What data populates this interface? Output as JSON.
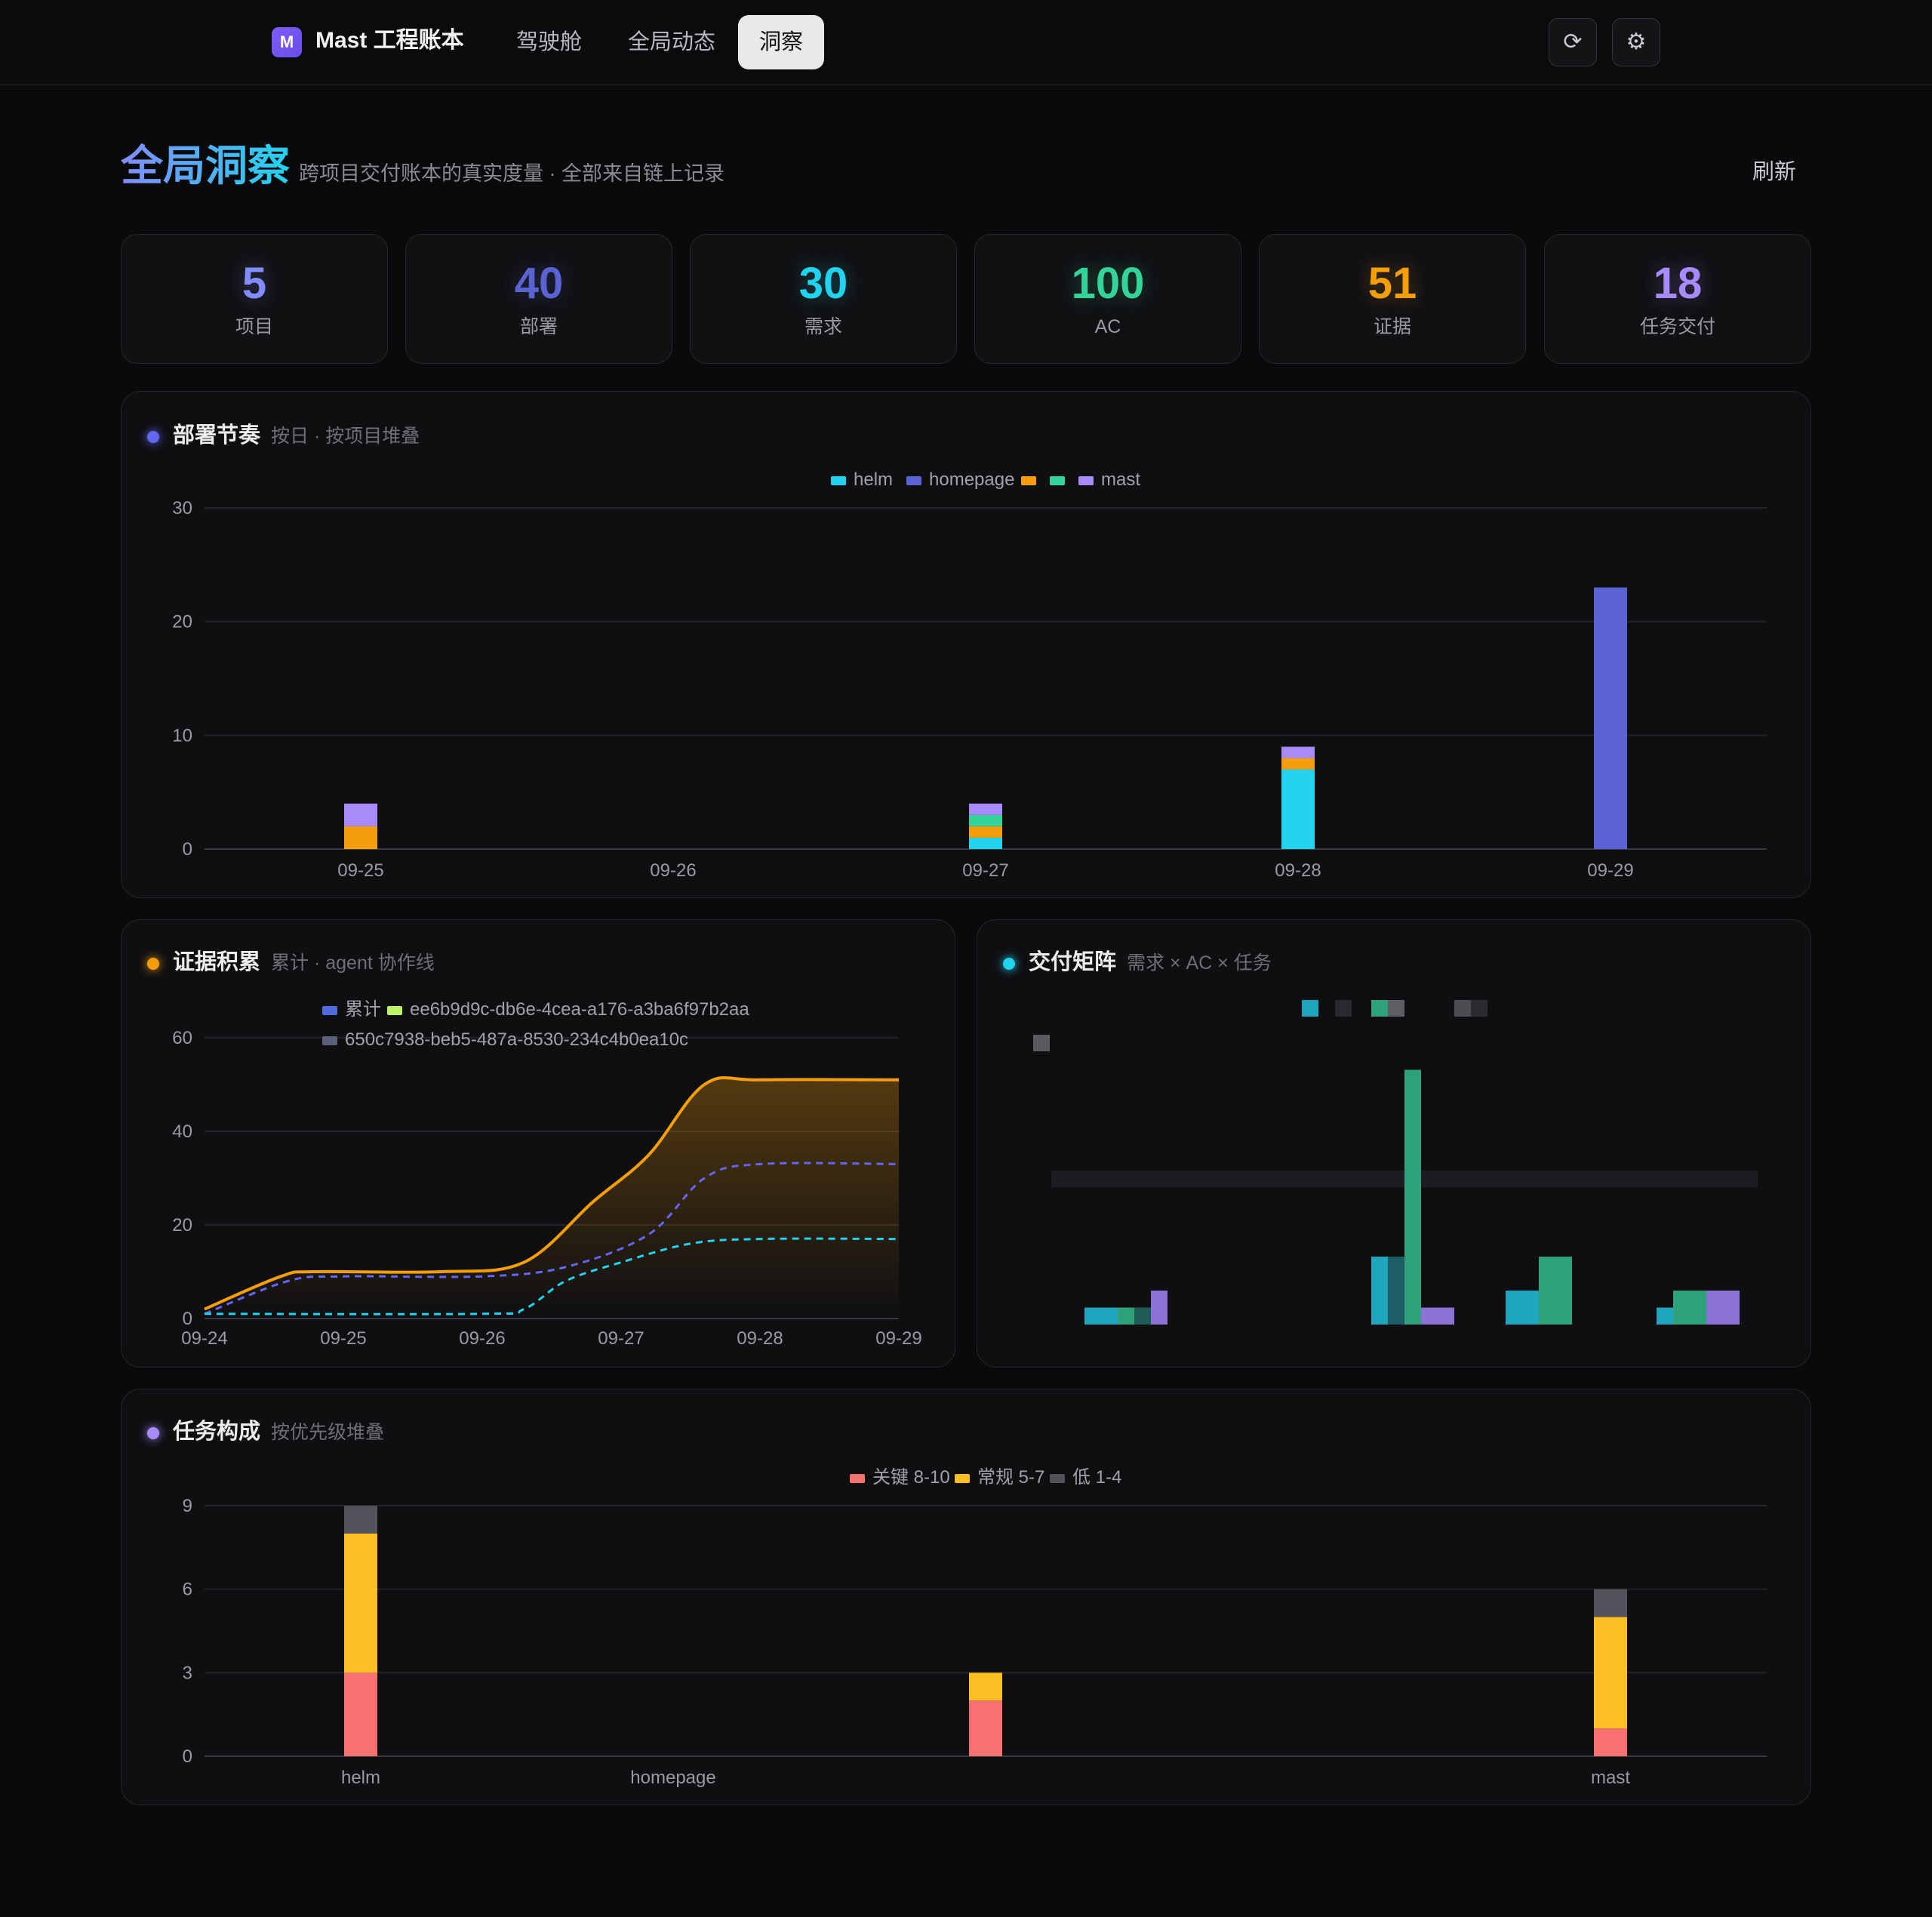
{
  "app": {
    "logo_letter": "M",
    "name": "Mast 工程账本",
    "nav": [
      {
        "label": "驾驶舱",
        "active": false
      },
      {
        "label": "全局动态",
        "active": false
      },
      {
        "label": "洞察",
        "active": true
      }
    ],
    "icons": {
      "refresh": "⟳",
      "settings": "⚙"
    }
  },
  "page": {
    "title": "全局洞察",
    "subtitle": "跨项目交付账本的真实度量 · 全部来自链上记录",
    "refresh_label": "刷新"
  },
  "stats": [
    {
      "value": "5",
      "label": "项目",
      "color": "#818cf8"
    },
    {
      "value": "40",
      "label": "部署",
      "color": "#5b63d3"
    },
    {
      "value": "30",
      "label": "需求",
      "color": "#22d3ee"
    },
    {
      "value": "100",
      "label": "AC",
      "color": "#34d399"
    },
    {
      "value": "51",
      "label": "证据",
      "color": "#f59e0b"
    },
    {
      "value": "18",
      "label": "任务交付",
      "color": "#a78bfa"
    }
  ],
  "panels": {
    "deploy": {
      "title": "部署节奏",
      "subtitle": "按日 · 按项目堆叠",
      "dot_color": "#6366f1"
    },
    "evidence": {
      "title": "证据积累",
      "subtitle": "累计 · agent 协作线",
      "dot_color": "#f59e0b"
    },
    "matrix": {
      "title": "交付矩阵",
      "subtitle": "需求 × AC × 任务",
      "dot_color": "#22d3ee"
    },
    "tasks": {
      "title": "任务构成",
      "subtitle": "按优先级堆叠",
      "dot_color": "#a78bfa"
    }
  },
  "chart_data": [
    {
      "id": "deploy",
      "type": "bar",
      "stacked": true,
      "categories": [
        "09-25",
        "09-26",
        "09-27",
        "09-28",
        "09-29"
      ],
      "ylim": [
        0,
        30
      ],
      "yticks": [
        0,
        10,
        20,
        30
      ],
      "legend_position": "top-center",
      "series": [
        {
          "name": "helm",
          "color": "#22d3ee",
          "values": [
            0,
            0,
            1,
            7,
            0
          ]
        },
        {
          "name": "homepage",
          "color": "#5b63d3",
          "values": [
            0,
            0,
            0,
            0,
            23
          ]
        },
        {
          "name": "",
          "color": "#f59e0b",
          "values": [
            2,
            0,
            1,
            1,
            0
          ]
        },
        {
          "name": "",
          "color": "#34d399",
          "values": [
            0,
            0,
            1,
            0,
            0
          ]
        },
        {
          "name": "mast",
          "color": "#a78bfa",
          "values": [
            2,
            0,
            1,
            1,
            0
          ]
        }
      ]
    },
    {
      "id": "evidence",
      "type": "line",
      "x": [
        "09-24",
        "09-25",
        "09-26",
        "09-27",
        "09-28",
        "09-29"
      ],
      "ylim": [
        0,
        60
      ],
      "yticks": [
        0,
        20,
        40,
        60
      ],
      "legend_position": "top-left",
      "series": [
        {
          "name": "累计",
          "color": "#f59e0b",
          "legend_color": "#4f6bdf",
          "style": "area",
          "points": [
            [
              0,
              2
            ],
            [
              0.55,
              9
            ],
            [
              0.8,
              10
            ],
            [
              1.7,
              10
            ],
            [
              2.3,
              12
            ],
            [
              2.8,
              25
            ],
            [
              3.2,
              35
            ],
            [
              3.6,
              50
            ],
            [
              4,
              51
            ],
            [
              5,
              51
            ]
          ]
        },
        {
          "name": "ee6b9d9c-db6e-4cea-a176-a3ba6f97b2aa",
          "color": "#6366f1",
          "legend_color": "#bef264",
          "style": "dashed",
          "points": [
            [
              0,
              1
            ],
            [
              0.6,
              8
            ],
            [
              1,
              9
            ],
            [
              2,
              9
            ],
            [
              2.6,
              11
            ],
            [
              3.2,
              18
            ],
            [
              3.6,
              30
            ],
            [
              4,
              33
            ],
            [
              5,
              33
            ]
          ]
        },
        {
          "name": "650c7938-beb5-487a-8530-234c4b0ea10c",
          "color": "#22d3ee",
          "legend_color": "#5a5f7a",
          "style": "dashed",
          "points": [
            [
              0,
              1
            ],
            [
              2,
              1
            ],
            [
              2.3,
              2
            ],
            [
              2.6,
              8
            ],
            [
              3,
              12
            ],
            [
              3.5,
              16
            ],
            [
              4,
              17
            ],
            [
              5,
              17
            ]
          ]
        }
      ]
    },
    {
      "id": "matrix",
      "type": "bar",
      "note_legend_swatches": [
        "#1fa5bd",
        "#2a2a2e",
        "#2fa27c",
        "#5d5d63",
        "#4c4c52",
        "#2b2b2f",
        "#5a5a60"
      ],
      "groups": [
        {
          "bars": [
            {
              "value": 1,
              "color": "#1fa5bd"
            },
            {
              "value": 1,
              "color": "#1fa5bd"
            },
            {
              "value": 1,
              "color": "#2fa27c"
            },
            {
              "value": 1,
              "color": "#1d5d55"
            },
            {
              "value": 2,
              "color": "#8b72d6"
            }
          ]
        },
        {
          "bars": [
            {
              "value": 4,
              "color": "#1fa5bd"
            },
            {
              "value": 4,
              "color": "#1d5d66"
            },
            {
              "value": 15,
              "color": "#2fa27c"
            },
            {
              "value": 1,
              "color": "#8b72d6"
            },
            {
              "value": 1,
              "color": "#8b72d6"
            }
          ]
        },
        {
          "bars": [
            {
              "value": 2,
              "color": "#1fa5bd"
            },
            {
              "value": 2,
              "color": "#1fa5bd"
            },
            {
              "value": 4,
              "color": "#2fa27c"
            },
            {
              "value": 4,
              "color": "#2fa27c"
            }
          ]
        },
        {
          "bars": [
            {
              "value": 1,
              "color": "#1fa5bd"
            },
            {
              "value": 2,
              "color": "#2fa27c"
            },
            {
              "value": 2,
              "color": "#2fa27c"
            },
            {
              "value": 2,
              "color": "#8b72d6"
            },
            {
              "value": 2,
              "color": "#8b72d6"
            }
          ]
        }
      ]
    },
    {
      "id": "tasks",
      "type": "bar",
      "stacked": true,
      "categories": [
        "helm",
        "homepage",
        "",
        "",
        "mast"
      ],
      "ylim": [
        0,
        9
      ],
      "yticks": [
        0,
        3,
        6,
        9
      ],
      "legend_position": "top-center",
      "series": [
        {
          "name": "关键 8-10",
          "color": "#f87171",
          "values": [
            3,
            0,
            2,
            0,
            1
          ]
        },
        {
          "name": "常规 5-7",
          "color": "#fbbf24",
          "values": [
            5,
            0,
            1,
            0,
            4
          ]
        },
        {
          "name": "低 1-4",
          "color": "#52525b",
          "values": [
            1,
            0,
            0,
            0,
            1
          ]
        }
      ]
    }
  ]
}
